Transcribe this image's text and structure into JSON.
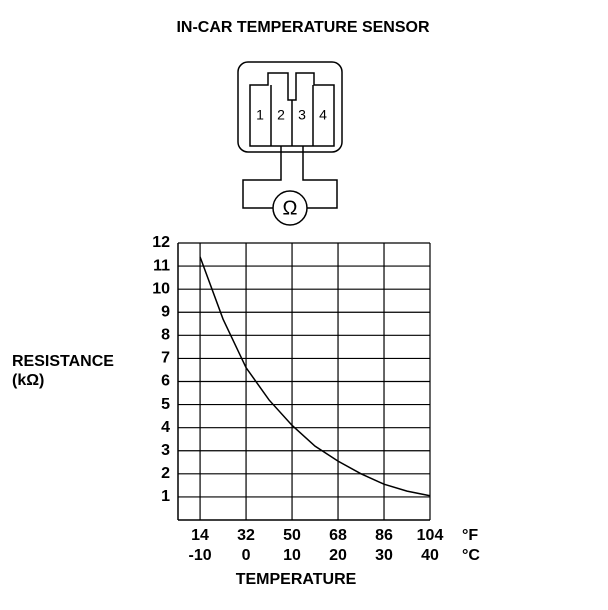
{
  "chart_data": {
    "type": "line",
    "title": "IN-CAR TEMPERATURE SENSOR",
    "y_label": [
      "RESISTANCE",
      "(kΩ)"
    ],
    "x_label": "TEMPERATURE",
    "x_unit": "°C",
    "x2_unit": "°F",
    "series": [
      {
        "name": "resistance",
        "color": "#000000",
        "x": [
          -10,
          -5,
          0,
          5,
          10,
          15,
          20,
          25,
          30,
          35,
          40
        ],
        "values": [
          11.4,
          8.7,
          6.6,
          5.2,
          4.1,
          3.2,
          2.55,
          2.0,
          1.55,
          1.25,
          1.05
        ]
      }
    ],
    "xlim": [
      -14.8,
      40
    ],
    "xticks": [
      -10,
      0,
      10,
      20,
      30,
      40
    ],
    "x2lim": [
      5.4,
      104
    ],
    "x2ticks": [
      14,
      32,
      50,
      68,
      86,
      104
    ],
    "ylim": [
      0,
      12
    ],
    "yticks": [
      1,
      2,
      3,
      4,
      5,
      6,
      7,
      8,
      9,
      10,
      11,
      12
    ],
    "grid": true
  },
  "connector": {
    "pins": [
      "1",
      "2",
      "3",
      "4"
    ],
    "symbol": "Ω"
  }
}
